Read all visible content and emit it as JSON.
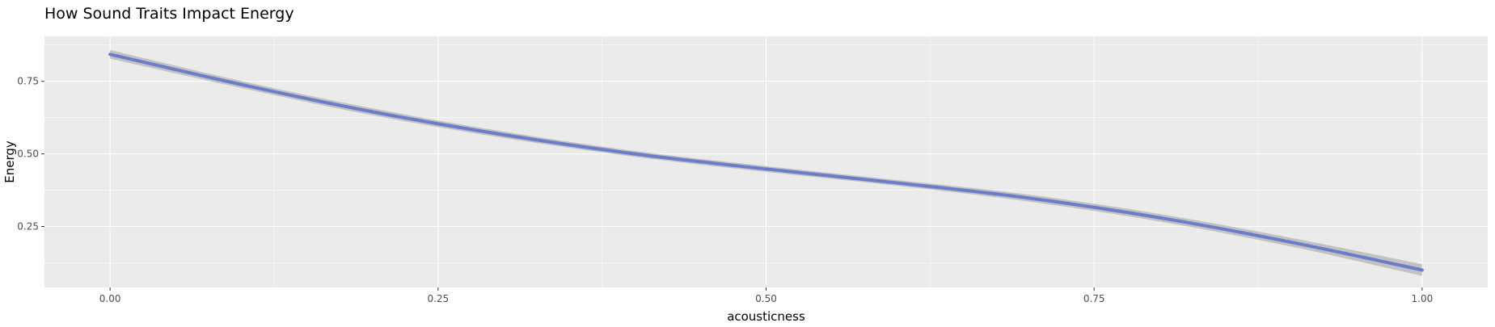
{
  "colors": {
    "panel_background": "#EBEBEB",
    "grid": "#FFFFFF",
    "line": "#6B7CCB",
    "confidence_band": "#BEBEBE",
    "text": "#333333",
    "tick_text": "#4D4D4D"
  },
  "chart_data": {
    "type": "line",
    "title": "How Sound Traits Impact Energy",
    "xlabel": "acousticness",
    "ylabel": "Energy",
    "xlim": [
      -0.05,
      1.05
    ],
    "ylim": [
      0.04,
      0.905
    ],
    "x_ticks": [
      0.0,
      0.25,
      0.5,
      0.75,
      1.0
    ],
    "x_tick_labels": [
      "0.00",
      "0.25",
      "0.50",
      "0.75",
      "1.00"
    ],
    "y_ticks": [
      0.25,
      0.5,
      0.75
    ],
    "y_tick_labels": [
      "0.25",
      "0.50",
      "0.75"
    ],
    "grid": true,
    "legend": "none",
    "series": [
      {
        "smoother": "loess with confidence band",
        "x": [
          0.0,
          0.1,
          0.2,
          0.3,
          0.4,
          0.5,
          0.6,
          0.7,
          0.8,
          0.9,
          1.0
        ],
        "y": [
          0.843,
          0.739,
          0.645,
          0.566,
          0.5,
          0.448,
          0.4,
          0.348,
          0.28,
          0.196,
          0.1
        ],
        "lower": [
          0.828,
          0.727,
          0.633,
          0.555,
          0.49,
          0.438,
          0.39,
          0.336,
          0.267,
          0.181,
          0.08
        ],
        "upper": [
          0.858,
          0.751,
          0.657,
          0.577,
          0.51,
          0.458,
          0.41,
          0.36,
          0.293,
          0.211,
          0.12
        ]
      }
    ]
  }
}
